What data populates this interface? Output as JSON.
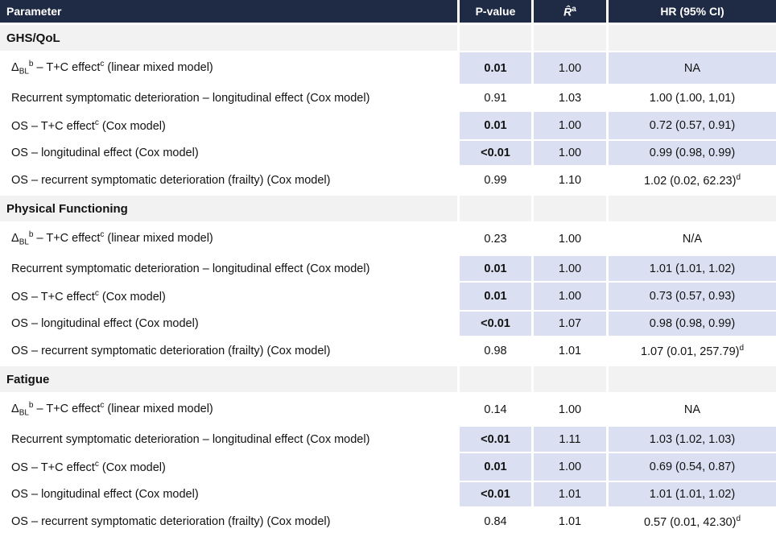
{
  "table": {
    "columns": [
      {
        "label": [
          {
            "t": "Parameter"
          }
        ]
      },
      {
        "label": [
          {
            "t": "P-value"
          }
        ]
      },
      {
        "label": [
          {
            "t": "R̂",
            "i": true
          },
          {
            "sup": "a"
          }
        ]
      },
      {
        "label": [
          {
            "t": "HR (95% CI)"
          }
        ]
      }
    ],
    "sections": [
      {
        "title": "GHS/QoL",
        "rows": [
          {
            "param": [
              {
                "t": "Δ"
              },
              {
                "sub": "BL"
              },
              {
                "sup": "b"
              },
              {
                "t": " – T+C effect"
              },
              {
                "sup": "c"
              },
              {
                "t": " (linear mixed model)"
              }
            ],
            "p": "0.01",
            "p_bold": true,
            "r": "1.00",
            "hr": [
              {
                "t": "NA"
              }
            ],
            "highlight": true
          },
          {
            "param": [
              {
                "t": "Recurrent symptomatic deterioration – longitudinal effect (Cox model)"
              }
            ],
            "p": "0.91",
            "p_bold": false,
            "r": "1.03",
            "hr": [
              {
                "t": "1.00 (1.00, 1,01)"
              }
            ],
            "highlight": false
          },
          {
            "param": [
              {
                "t": "OS – T+C effect"
              },
              {
                "sup": "c"
              },
              {
                "t": " (Cox model)"
              }
            ],
            "p": "0.01",
            "p_bold": true,
            "r": "1.00",
            "hr": [
              {
                "t": "0.72 (0.57, 0.91)"
              }
            ],
            "highlight": true
          },
          {
            "param": [
              {
                "t": "OS – longitudinal effect (Cox model)"
              }
            ],
            "p": "<0.01",
            "p_bold": true,
            "r": "1.00",
            "hr": [
              {
                "t": "0.99 (0.98, 0.99)"
              }
            ],
            "highlight": true
          },
          {
            "param": [
              {
                "t": "OS – recurrent symptomatic deterioration (frailty) (Cox model)"
              }
            ],
            "p": "0.99",
            "p_bold": false,
            "r": "1.10",
            "hr": [
              {
                "t": "1.02 (0.02, 62.23)"
              },
              {
                "sup": "d"
              }
            ],
            "highlight": false
          }
        ]
      },
      {
        "title": "Physical Functioning",
        "rows": [
          {
            "param": [
              {
                "t": "Δ"
              },
              {
                "sub": "BL"
              },
              {
                "sup": "b"
              },
              {
                "t": " – T+C effect"
              },
              {
                "sup": "c"
              },
              {
                "t": " (linear mixed model)"
              }
            ],
            "p": "0.23",
            "p_bold": false,
            "r": "1.00",
            "hr": [
              {
                "t": "N/A"
              }
            ],
            "highlight": false
          },
          {
            "param": [
              {
                "t": "Recurrent symptomatic deterioration – longitudinal effect (Cox model)"
              }
            ],
            "p": "0.01",
            "p_bold": true,
            "r": "1.00",
            "hr": [
              {
                "t": "1.01 (1.01, 1.02)"
              }
            ],
            "highlight": true
          },
          {
            "param": [
              {
                "t": "OS – T+C effect"
              },
              {
                "sup": "c"
              },
              {
                "t": " (Cox model)"
              }
            ],
            "p": "0.01",
            "p_bold": true,
            "r": "1.00",
            "hr": [
              {
                "t": "0.73 (0.57, 0.93)"
              }
            ],
            "highlight": true
          },
          {
            "param": [
              {
                "t": "OS – longitudinal effect (Cox model)"
              }
            ],
            "p": "<0.01",
            "p_bold": true,
            "r": "1.07",
            "hr": [
              {
                "t": "0.98 (0.98, 0.99)"
              }
            ],
            "highlight": true
          },
          {
            "param": [
              {
                "t": "OS – recurrent symptomatic deterioration (frailty) (Cox model)"
              }
            ],
            "p": "0.98",
            "p_bold": false,
            "r": "1.01",
            "hr": [
              {
                "t": "1.07 (0.01, 257.79)"
              },
              {
                "sup": "d"
              }
            ],
            "highlight": false
          }
        ]
      },
      {
        "title": "Fatigue",
        "rows": [
          {
            "param": [
              {
                "t": "Δ"
              },
              {
                "sub": "BL"
              },
              {
                "sup": "b"
              },
              {
                "t": " – T+C effect"
              },
              {
                "sup": "c"
              },
              {
                "t": " (linear mixed model)"
              }
            ],
            "p": "0.14",
            "p_bold": false,
            "r": "1.00",
            "hr": [
              {
                "t": "NA"
              }
            ],
            "highlight": false
          },
          {
            "param": [
              {
                "t": "Recurrent symptomatic deterioration – longitudinal effect (Cox model)"
              }
            ],
            "p": "<0.01",
            "p_bold": true,
            "r": "1.11",
            "hr": [
              {
                "t": "1.03 (1.02, 1.03)"
              }
            ],
            "highlight": true
          },
          {
            "param": [
              {
                "t": "OS – T+C effect"
              },
              {
                "sup": "c"
              },
              {
                "t": " (Cox model)"
              }
            ],
            "p": "0.01",
            "p_bold": true,
            "r": "1.00",
            "hr": [
              {
                "t": "0.69 (0.54, 0.87)"
              }
            ],
            "highlight": true
          },
          {
            "param": [
              {
                "t": "OS – longitudinal effect (Cox model)"
              }
            ],
            "p": "<0.01",
            "p_bold": true,
            "r": "1.01",
            "hr": [
              {
                "t": "1.01 (1.01, 1.02)"
              }
            ],
            "highlight": true
          },
          {
            "param": [
              {
                "t": "OS – recurrent symptomatic deterioration (frailty) (Cox model)"
              }
            ],
            "p": "0.84",
            "p_bold": false,
            "r": "1.01",
            "hr": [
              {
                "t": "0.57 (0.01, 42.30)"
              },
              {
                "sup": "d"
              }
            ],
            "highlight": false
          }
        ]
      }
    ]
  },
  "colors": {
    "header_bg": "#1F2A44",
    "header_text": "#FFFFFF",
    "section_bg": "#F2F2F2",
    "highlight_bg": "#DAE0F1",
    "row_bg": "#FFFFFF",
    "separator": "#FFFFFF",
    "text": "#121212"
  }
}
